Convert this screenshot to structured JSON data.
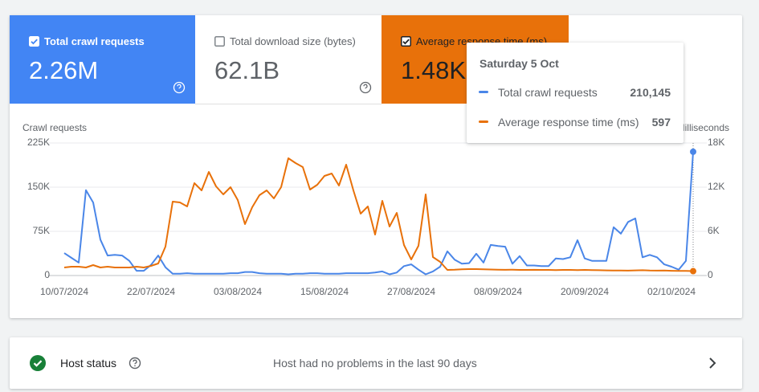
{
  "metric_cards": [
    {
      "label": "Total crawl requests",
      "value": "2.26M",
      "checked": true
    },
    {
      "label": "Total download size (bytes)",
      "value": "62.1B",
      "checked": false
    },
    {
      "label": "Average response time (ms)",
      "value": "1.48K",
      "checked": true
    }
  ],
  "chart_data": {
    "type": "line",
    "y_label": "Crawl requests",
    "y2_label": "Milliseconds",
    "x": [
      "10/07/2024",
      "11/07/2024",
      "12/07/2024",
      "13/07/2024",
      "14/07/2024",
      "15/07/2024",
      "16/07/2024",
      "17/07/2024",
      "18/07/2024",
      "19/07/2024",
      "20/07/2024",
      "21/07/2024",
      "22/07/2024",
      "23/07/2024",
      "24/07/2024",
      "25/07/2024",
      "26/07/2024",
      "27/07/2024",
      "28/07/2024",
      "29/07/2024",
      "30/07/2024",
      "31/07/2024",
      "01/08/2024",
      "02/08/2024",
      "03/08/2024",
      "04/08/2024",
      "05/08/2024",
      "06/08/2024",
      "07/08/2024",
      "08/08/2024",
      "09/08/2024",
      "10/08/2024",
      "11/08/2024",
      "12/08/2024",
      "13/08/2024",
      "14/08/2024",
      "15/08/2024",
      "16/08/2024",
      "17/08/2024",
      "18/08/2024",
      "19/08/2024",
      "20/08/2024",
      "21/08/2024",
      "22/08/2024",
      "23/08/2024",
      "24/08/2024",
      "25/08/2024",
      "26/08/2024",
      "27/08/2024",
      "28/08/2024",
      "29/08/2024",
      "30/08/2024",
      "31/08/2024",
      "01/09/2024",
      "02/09/2024",
      "03/09/2024",
      "04/09/2024",
      "05/09/2024",
      "06/09/2024",
      "07/09/2024",
      "08/09/2024",
      "09/09/2024",
      "10/09/2024",
      "11/09/2024",
      "12/09/2024",
      "13/09/2024",
      "14/09/2024",
      "15/09/2024",
      "16/09/2024",
      "17/09/2024",
      "18/09/2024",
      "19/09/2024",
      "20/09/2024",
      "21/09/2024",
      "22/09/2024",
      "23/09/2024",
      "24/09/2024",
      "25/09/2024",
      "26/09/2024",
      "27/09/2024",
      "28/09/2024",
      "29/09/2024",
      "30/09/2024",
      "01/10/2024",
      "02/10/2024",
      "03/10/2024",
      "04/10/2024",
      "05/10/2024"
    ],
    "xlim": [
      "10/07/2024",
      "05/10/2024"
    ],
    "xticks": [
      "10/07/2024",
      "22/07/2024",
      "03/08/2024",
      "15/08/2024",
      "27/08/2024",
      "08/09/2024",
      "20/09/2024",
      "02/10/2024"
    ],
    "ylim": [
      0,
      225000
    ],
    "yticks": [
      0,
      {
        "value": 75000,
        "label": "75K"
      },
      {
        "value": 150000,
        "label": "150K"
      },
      {
        "value": 225000,
        "label": "225K"
      }
    ],
    "y2lim": [
      0,
      18000
    ],
    "y2ticks": [
      0,
      {
        "value": 6000,
        "label": "6K"
      },
      {
        "value": 12000,
        "label": "12K"
      },
      {
        "value": 18000,
        "label": "18K"
      }
    ],
    "grid": true,
    "series": [
      {
        "name": "Total crawl requests",
        "color": "#4a86e8",
        "values": [
          38000,
          30000,
          22000,
          145000,
          124000,
          61000,
          34000,
          35000,
          34000,
          25000,
          8000,
          8000,
          18000,
          34000,
          14000,
          3000,
          3000,
          4000,
          3000,
          3000,
          3000,
          3000,
          3000,
          4000,
          4000,
          6000,
          6000,
          4000,
          3000,
          3000,
          3000,
          2000,
          3000,
          3000,
          4000,
          4000,
          3000,
          3000,
          3000,
          4000,
          4000,
          4000,
          4000,
          5000,
          7000,
          2000,
          5000,
          16000,
          19000,
          10000,
          2000,
          7000,
          15000,
          41000,
          27000,
          20000,
          21000,
          37000,
          22000,
          52000,
          50000,
          49000,
          20000,
          33000,
          17000,
          17000,
          16000,
          16000,
          29000,
          28000,
          31000,
          60000,
          29000,
          25000,
          25000,
          25000,
          82000,
          71000,
          91000,
          97000,
          31000,
          35000,
          31000,
          19000,
          15000,
          10000,
          25000,
          210145
        ]
      },
      {
        "name": "Average response time (ms)",
        "color": "#e8710a",
        "axis": "y2",
        "values": [
          1091,
          1200,
          1200,
          1091,
          1418,
          1091,
          1200,
          1091,
          1091,
          1091,
          1200,
          1091,
          1309,
          1636,
          3927,
          10036,
          9927,
          9382,
          12545,
          11564,
          14073,
          12109,
          11018,
          12000,
          10255,
          6982,
          9273,
          10909,
          11564,
          10473,
          12000,
          15927,
          15273,
          14727,
          11673,
          12327,
          13527,
          13855,
          12218,
          15055,
          11564,
          8400,
          9382,
          5564,
          10145,
          6655,
          8509,
          4145,
          2182,
          4036,
          11018,
          2509,
          1855,
          764,
          800,
          850,
          870,
          870,
          850,
          820,
          800,
          780,
          800,
          760,
          760,
          780,
          760,
          760,
          740,
          760,
          760,
          740,
          760,
          740,
          720,
          700,
          680,
          680,
          660,
          700,
          720,
          680,
          660,
          680,
          640,
          620,
          620,
          597
        ]
      }
    ]
  },
  "tooltip": {
    "date": "Saturday 5 Oct",
    "rows": [
      {
        "label": "Total crawl requests",
        "value": "210,145"
      },
      {
        "label": "Average response time (ms)",
        "value": "597"
      }
    ]
  },
  "host_status": {
    "label": "Host status",
    "message": "Host had no problems in the last 90 days"
  }
}
